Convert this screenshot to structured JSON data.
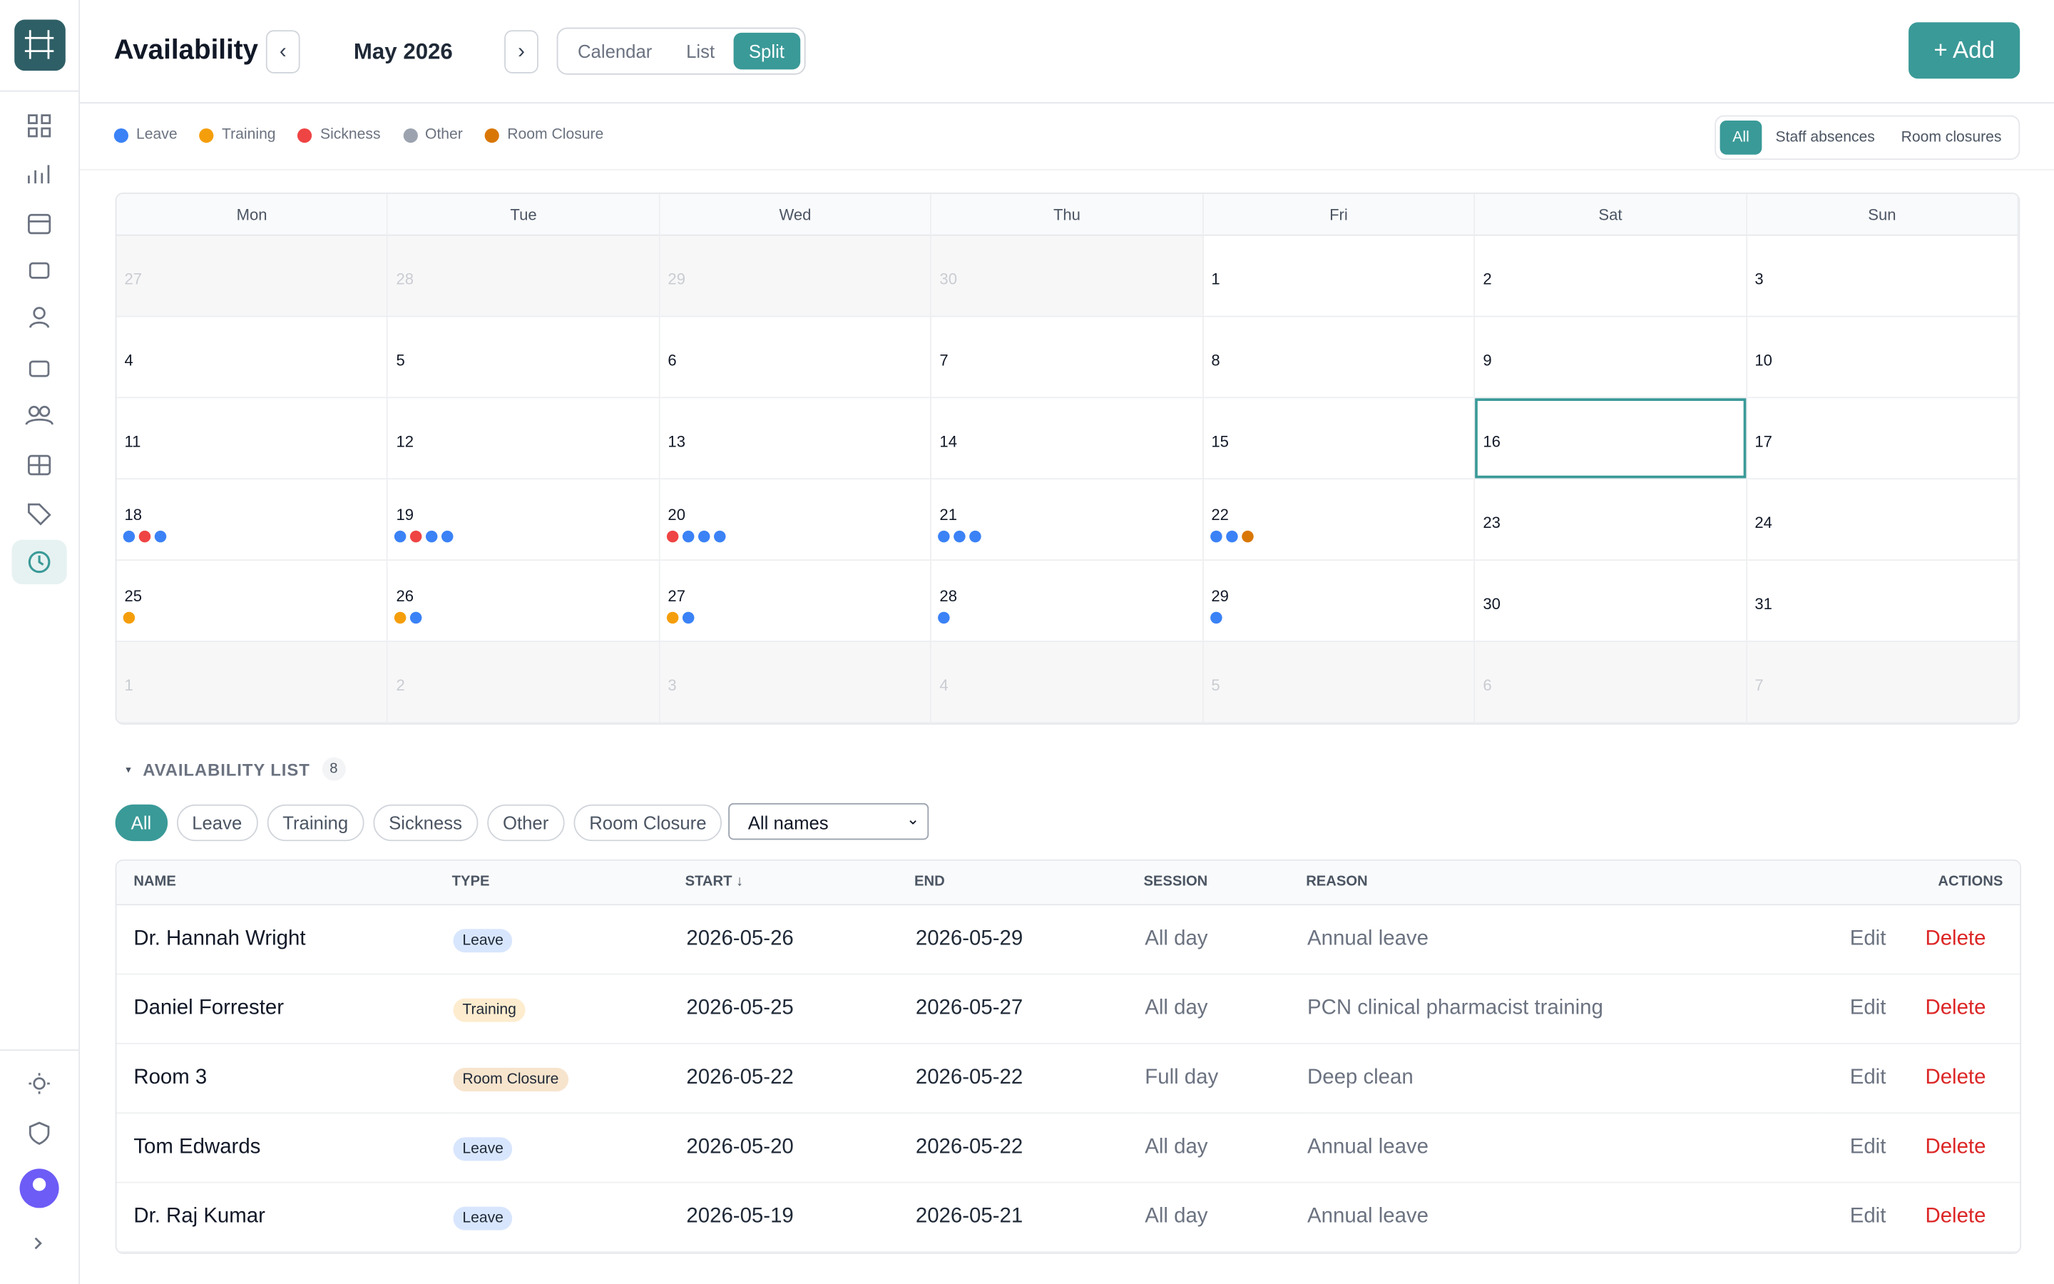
{
  "header": {
    "title": "Availability",
    "month": "May 2026",
    "prev": "‹",
    "next": "›",
    "views": [
      "Calendar",
      "List",
      "Split"
    ],
    "active_view": 2,
    "add": "+ Add"
  },
  "legend": [
    {
      "name": "Leave",
      "color": "#3b82f6"
    },
    {
      "name": "Training",
      "color": "#f59e0b"
    },
    {
      "name": "Sickness",
      "color": "#ef4444"
    },
    {
      "name": "Other",
      "color": "#9ca3af"
    },
    {
      "name": "Room Closure",
      "color": "#d97706"
    }
  ],
  "filter_tabs": [
    "All",
    "Staff absences",
    "Room closures"
  ],
  "active_filter": 0,
  "calendar": {
    "weekdays": [
      "Mon",
      "Tue",
      "Wed",
      "Thu",
      "Fri",
      "Sat",
      "Sun"
    ],
    "weeks": [
      [
        {
          "day": 27,
          "out": true
        },
        {
          "day": 28,
          "out": true
        },
        {
          "day": 29,
          "out": true
        },
        {
          "day": 30,
          "out": true
        },
        {
          "day": 1
        },
        {
          "day": 2
        },
        {
          "day": 3
        }
      ],
      [
        {
          "day": 4
        },
        {
          "day": 5
        },
        {
          "day": 6
        },
        {
          "day": 7
        },
        {
          "day": 8
        },
        {
          "day": 9
        },
        {
          "day": 10
        }
      ],
      [
        {
          "day": 11
        },
        {
          "day": 12
        },
        {
          "day": 13
        },
        {
          "day": 14
        },
        {
          "day": 15
        },
        {
          "day": 16,
          "selected": true
        },
        {
          "day": 17
        }
      ],
      [
        {
          "day": 18,
          "dots": [
            0,
            2,
            0
          ]
        },
        {
          "day": 19,
          "dots": [
            0,
            2,
            0,
            0
          ]
        },
        {
          "day": 20,
          "dots": [
            2,
            0,
            0,
            0
          ]
        },
        {
          "day": 21,
          "dots": [
            0,
            0,
            0
          ]
        },
        {
          "day": 22,
          "dots": [
            0,
            0,
            4
          ]
        },
        {
          "day": 23
        },
        {
          "day": 24
        }
      ],
      [
        {
          "day": 25,
          "dots": [
            1
          ]
        },
        {
          "day": 26,
          "dots": [
            1,
            0
          ]
        },
        {
          "day": 27,
          "dots": [
            1,
            0
          ]
        },
        {
          "day": 28,
          "dots": [
            0
          ]
        },
        {
          "day": 29,
          "dots": [
            0
          ]
        },
        {
          "day": 30
        },
        {
          "day": 31
        }
      ],
      [
        {
          "day": 1,
          "out": true
        },
        {
          "day": 2,
          "out": true
        },
        {
          "day": 3,
          "out": true
        },
        {
          "day": 4,
          "out": true
        },
        {
          "day": 5,
          "out": true
        },
        {
          "day": 6,
          "out": true
        },
        {
          "day": 7,
          "out": true
        }
      ]
    ]
  },
  "list": {
    "toggle": "▾",
    "title": "AVAILABILITY LIST",
    "count": 8,
    "chips": [
      "All",
      "Leave",
      "Training",
      "Sickness",
      "Other",
      "Room Closure"
    ],
    "active_chip": 0,
    "select": "All names",
    "columns": [
      "NAME",
      "TYPE",
      "START ↓",
      "END",
      "SESSION",
      "REASON",
      "ACTIONS"
    ],
    "rows": [
      {
        "name": "Dr. Hannah Wright",
        "type": "Leave",
        "start": "2026-05-26",
        "end": "2026-05-29",
        "session": "All day",
        "reason": "Annual leave",
        "edit": "Edit",
        "delete": "Delete"
      },
      {
        "name": "Daniel Forrester",
        "type": "Training",
        "start": "2026-05-25",
        "end": "2026-05-27",
        "session": "All day",
        "reason": "PCN clinical pharmacist training",
        "edit": "Edit",
        "delete": "Delete"
      },
      {
        "name": "Room 3",
        "type": "Room Closure",
        "start": "2026-05-22",
        "end": "2026-05-22",
        "session": "Full day",
        "reason": "Deep clean",
        "edit": "Edit",
        "delete": "Delete"
      },
      {
        "name": "Tom Edwards",
        "type": "Leave",
        "start": "2026-05-20",
        "end": "2026-05-22",
        "session": "All day",
        "reason": "Annual leave",
        "edit": "Edit",
        "delete": "Delete"
      },
      {
        "name": "Dr. Raj Kumar",
        "type": "Leave",
        "start": "2026-05-19",
        "end": "2026-05-21",
        "session": "All day",
        "reason": "Annual leave",
        "edit": "Edit",
        "delete": "Delete"
      }
    ]
  }
}
